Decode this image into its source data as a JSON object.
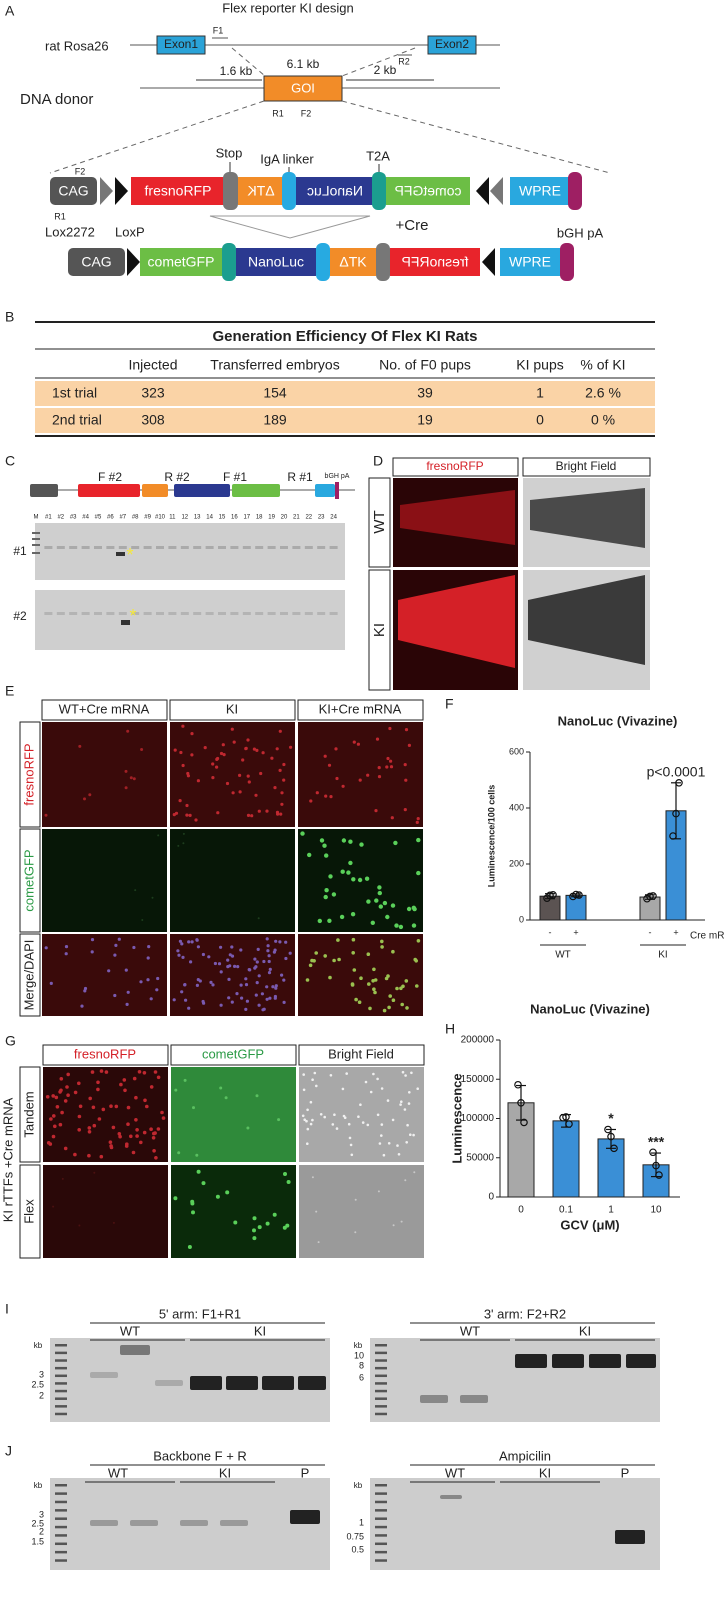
{
  "panel_labels": [
    "A",
    "B",
    "C",
    "D",
    "E",
    "F",
    "G",
    "H",
    "I",
    "J"
  ],
  "a": {
    "title": "Flex reporter KI design",
    "locus": "rat Rosa26",
    "exon1": "Exon1",
    "exon2": "Exon2",
    "f1": "F1",
    "r2": "R2",
    "arm5": "1.6 kb",
    "insert": "6.1 kb",
    "arm3": "2 kb",
    "goi": "GOI",
    "r1": "R1",
    "f2": "F2",
    "donor": "DNA donor",
    "stop": "Stop",
    "iga": "IgA linker",
    "t2a": "T2A",
    "cassette_f2": "F2",
    "cassette_r1": "R1",
    "lox2272": "Lox2272",
    "loxp": "LoxP",
    "cre": "+Cre",
    "bgh": "bGH pA",
    "before": [
      "CAG",
      "fresnoRFP",
      "ΔTK",
      "NanoLuc",
      "cometGFP",
      "WPRE"
    ],
    "after": [
      "CAG",
      "cometGFP",
      "NanoLuc",
      "ΔTK",
      "fresnoRFP",
      "WPRE"
    ]
  },
  "b": {
    "title": "Generation Efficiency Of Flex KI Rats",
    "header": [
      "Injected",
      "Transferred embryos",
      "No. of F0 pups",
      "KI pups",
      "% of KI"
    ],
    "rows": [
      [
        "1st trial",
        "323",
        "154",
        "39",
        "1",
        "2.6 %"
      ],
      [
        "2nd trial",
        "308",
        "189",
        "19",
        "0",
        "0 %"
      ]
    ]
  },
  "c": {
    "primers": [
      "F #2",
      "R #2",
      "F #1",
      "R #1"
    ],
    "bgh": "bGH pA",
    "lanes": [
      "M",
      "#1",
      "#2",
      "#3",
      "#4",
      "#5",
      "#6",
      "#7",
      "#8",
      "#9",
      "#10",
      "11",
      "12",
      "13",
      "14",
      "15",
      "16",
      "17",
      "18",
      "19",
      "20",
      "21",
      "22",
      "23",
      "24"
    ],
    "rows": [
      "#1",
      "#2"
    ],
    "marker": "*"
  },
  "d": {
    "columns": [
      "fresnoRFP",
      "Bright Field"
    ],
    "rows": [
      "WT",
      "KI"
    ]
  },
  "e": {
    "columns": [
      "WT+Cre mRNA",
      "KI",
      "KI+Cre mRNA"
    ],
    "rows": [
      "fresnoRFP",
      "cometGFP",
      "Merge/DAPI"
    ]
  },
  "g": {
    "columns": [
      "fresnoRFP",
      "cometGFP",
      "Bright Field"
    ],
    "rows": [
      "Tandem",
      "Flex"
    ],
    "group": "KI rTTFs +Cre mRNA"
  },
  "i": [
    {
      "title": "5' arm: F1+R1",
      "groups": [
        "WT",
        "KI"
      ],
      "unit": "kb",
      "ladder": [
        "3",
        "2.5",
        "2"
      ]
    },
    {
      "title": "3' arm: F2+R2",
      "groups": [
        "WT",
        "KI"
      ],
      "unit": "kb",
      "ladder": [
        "10",
        "8",
        "6"
      ]
    }
  ],
  "j": [
    {
      "title": "Backbone F + R",
      "groups": [
        "WT",
        "KI",
        "P"
      ],
      "unit": "kb",
      "ladder": [
        "3",
        "2.5",
        "2",
        "1.5"
      ]
    },
    {
      "title": "Ampicilin",
      "groups": [
        "WT",
        "KI",
        "P"
      ],
      "unit": "kb",
      "ladder": [
        "1",
        "0.75",
        "0.5"
      ]
    }
  ],
  "chart_data": [
    {
      "type": "bar",
      "title": "NanoLuc (Vivazine)",
      "y_label": "Luminescence/100 cells",
      "x_label": "Cre mRNA",
      "ylim": [
        0,
        600
      ],
      "yticks": [
        0,
        200,
        400,
        600
      ],
      "groups": [
        {
          "name": "WT",
          "bars": [
            {
              "category": "-",
              "value": 85,
              "error": 9,
              "points": [
                78,
                88,
                90
              ],
              "color": "#5b5352"
            },
            {
              "category": "+",
              "value": 88,
              "error": 5,
              "points": [
                84,
                91,
                89
              ],
              "color": "#3a8fd6"
            }
          ]
        },
        {
          "name": "KI",
          "bars": [
            {
              "category": "-",
              "value": 82,
              "error": 8,
              "points": [
                76,
                84,
                86
              ],
              "color": "#a8a8a8"
            },
            {
              "category": "+",
              "value": 390,
              "error": 100,
              "points": [
                300,
                380,
                490
              ],
              "color": "#3a8fd6",
              "annotation": "p<0.0001"
            }
          ]
        }
      ]
    },
    {
      "type": "bar",
      "title": "NanoLuc (Vivazine)",
      "y_label": "Luminescence",
      "x_label": "GCV (μM)",
      "ylim": [
        0,
        200000
      ],
      "yticks": [
        0,
        50000,
        100000,
        150000,
        200000
      ],
      "bars": [
        {
          "category": "0",
          "value": 120000,
          "error": 22000,
          "points": [
            143000,
            120000,
            95000
          ],
          "color": "#a8a8a8"
        },
        {
          "category": "0.1",
          "value": 97000,
          "error": 8000,
          "points": [
            101000,
            102000,
            93000
          ],
          "color": "#3a8fd6"
        },
        {
          "category": "1",
          "value": 74000,
          "error": 12000,
          "points": [
            86000,
            77000,
            62000
          ],
          "color": "#3a8fd6",
          "annotation": "*"
        },
        {
          "category": "10",
          "value": 41000,
          "error": 15000,
          "points": [
            57000,
            40000,
            28000
          ],
          "color": "#3a8fd6",
          "annotation": "***"
        }
      ]
    }
  ]
}
